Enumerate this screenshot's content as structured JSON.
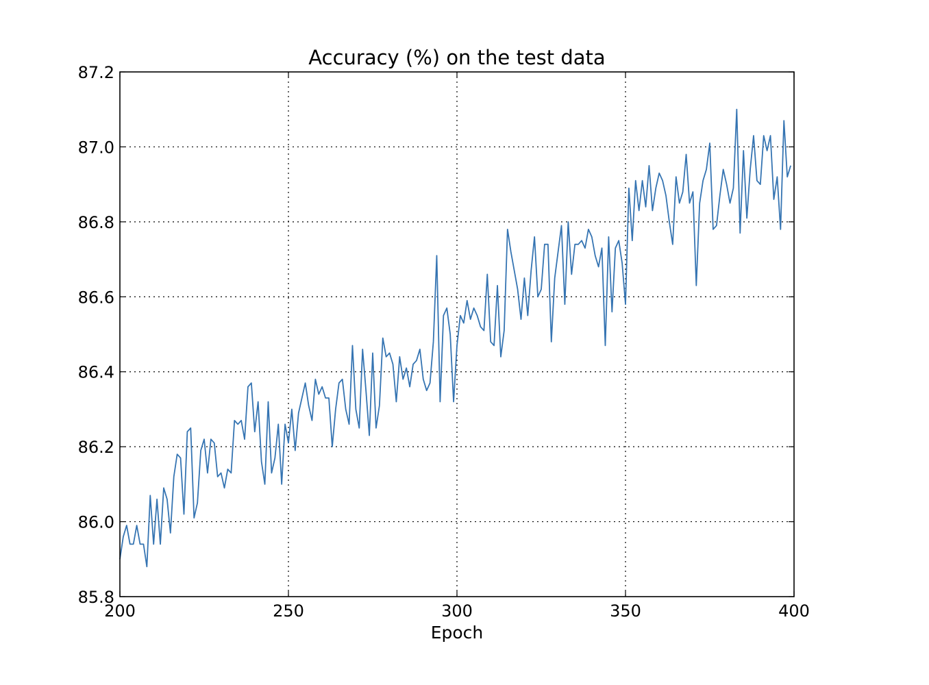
{
  "chart_data": {
    "type": "line",
    "title": "Accuracy (%) on the test data",
    "xlabel": "Epoch",
    "ylabel": "",
    "xlim": [
      200,
      400
    ],
    "ylim": [
      85.8,
      87.2
    ],
    "x_ticks": [
      "200",
      "250",
      "300",
      "350",
      "400"
    ],
    "y_ticks": [
      "85.8",
      "86.0",
      "86.2",
      "86.4",
      "86.6",
      "86.8",
      "87.0",
      "87.2"
    ],
    "grid": true,
    "series": [
      {
        "color": "#3574b2",
        "x_start": 200,
        "x_step": 1,
        "values": [
          85.9,
          85.96,
          85.99,
          85.94,
          85.94,
          85.99,
          85.94,
          85.94,
          85.88,
          86.07,
          85.94,
          86.06,
          85.94,
          86.09,
          86.06,
          85.97,
          86.12,
          86.18,
          86.17,
          86.02,
          86.24,
          86.25,
          86.01,
          86.05,
          86.19,
          86.22,
          86.13,
          86.22,
          86.21,
          86.12,
          86.13,
          86.09,
          86.14,
          86.13,
          86.27,
          86.26,
          86.27,
          86.22,
          86.36,
          86.37,
          86.24,
          86.32,
          86.16,
          86.1,
          86.32,
          86.13,
          86.17,
          86.26,
          86.1,
          86.26,
          86.21,
          86.3,
          86.19,
          86.29,
          86.33,
          86.37,
          86.31,
          86.27,
          86.38,
          86.34,
          86.36,
          86.33,
          86.33,
          86.2,
          86.3,
          86.37,
          86.38,
          86.3,
          86.26,
          86.47,
          86.3,
          86.25,
          86.46,
          86.35,
          86.23,
          86.45,
          86.25,
          86.31,
          86.49,
          86.44,
          86.45,
          86.42,
          86.32,
          86.44,
          86.38,
          86.41,
          86.36,
          86.42,
          86.43,
          86.46,
          86.38,
          86.35,
          86.37,
          86.48,
          86.71,
          86.32,
          86.55,
          86.57,
          86.5,
          86.32,
          86.47,
          86.55,
          86.53,
          86.59,
          86.54,
          86.57,
          86.55,
          86.52,
          86.51,
          86.66,
          86.48,
          86.47,
          86.63,
          86.44,
          86.51,
          86.78,
          86.72,
          86.67,
          86.62,
          86.54,
          86.65,
          86.55,
          86.67,
          86.76,
          86.6,
          86.62,
          86.74,
          86.74,
          86.48,
          86.65,
          86.72,
          86.79,
          86.58,
          86.8,
          86.66,
          86.74,
          86.74,
          86.75,
          86.73,
          86.78,
          86.76,
          86.71,
          86.68,
          86.73,
          86.47,
          86.76,
          86.56,
          86.73,
          86.75,
          86.69,
          86.58,
          86.89,
          86.75,
          86.91,
          86.83,
          86.91,
          86.84,
          86.95,
          86.83,
          86.89,
          86.93,
          86.91,
          86.87,
          86.8,
          86.74,
          86.92,
          86.85,
          86.88,
          86.98,
          86.85,
          86.88,
          86.63,
          86.85,
          86.91,
          86.94,
          87.01,
          86.78,
          86.79,
          86.87,
          86.94,
          86.9,
          86.85,
          86.89,
          87.1,
          86.77,
          86.99,
          86.81,
          86.94,
          87.03,
          86.91,
          86.9,
          87.03,
          86.99,
          87.03,
          86.86,
          86.92,
          86.78,
          87.07,
          86.92,
          86.95
        ]
      }
    ]
  }
}
